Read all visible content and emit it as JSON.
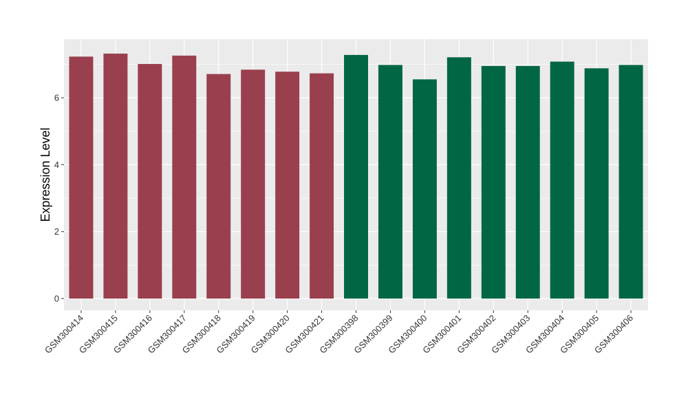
{
  "chart_data": {
    "type": "bar",
    "title": "",
    "xlabel": "",
    "ylabel": "Expression Level",
    "ylim": [
      -0.35,
      7.75
    ],
    "yticks": [
      0,
      2,
      4,
      6
    ],
    "grid": true,
    "background_color": "#EBEBEB",
    "grid_color": "#FFFFFF",
    "categories": [
      "GSM300414",
      "GSM300415",
      "GSM300416",
      "GSM300417",
      "GSM300418",
      "GSM300419",
      "GSM300420",
      "GSM300421",
      "GSM300398",
      "GSM300399",
      "GSM300400",
      "GSM300401",
      "GSM300402",
      "GSM300403",
      "GSM300404",
      "GSM300405",
      "GSM300406"
    ],
    "values": [
      7.23,
      7.32,
      7.01,
      7.26,
      6.71,
      6.84,
      6.78,
      6.73,
      7.28,
      6.98,
      6.55,
      7.21,
      6.95,
      6.95,
      7.08,
      6.88,
      6.98
    ],
    "groups": [
      {
        "color": "#9A3F4E",
        "members": [
          "GSM300414",
          "GSM300415",
          "GSM300416",
          "GSM300417",
          "GSM300418",
          "GSM300419",
          "GSM300420",
          "GSM300421"
        ]
      },
      {
        "color": "#006644",
        "members": [
          "GSM300398",
          "GSM300399",
          "GSM300400",
          "GSM300401",
          "GSM300402",
          "GSM300403",
          "GSM300404",
          "GSM300405",
          "GSM300406"
        ]
      }
    ]
  }
}
